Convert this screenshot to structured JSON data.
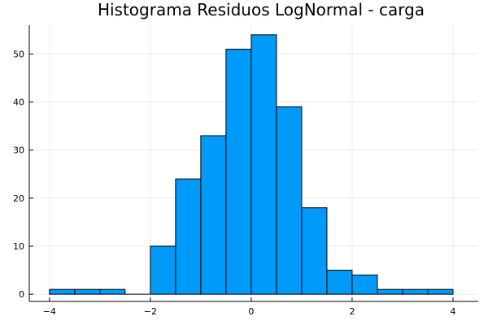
{
  "chart_data": {
    "type": "bar",
    "title": "Histograma Residuos LogNormal - carga",
    "xlabel": "",
    "ylabel": "",
    "xlim": [
      -4.4,
      4.5
    ],
    "ylim": [
      -1.5,
      56
    ],
    "x_ticks": [
      -4,
      -2,
      0,
      2,
      4
    ],
    "x_tick_labels": [
      "−4",
      "−2",
      "0",
      "2",
      "4"
    ],
    "y_ticks": [
      0,
      10,
      20,
      30,
      40,
      50
    ],
    "y_tick_labels": [
      "0",
      "10",
      "20",
      "30",
      "40",
      "50"
    ],
    "bin_width": 0.5,
    "bins": [
      {
        "start": -4.0,
        "end": -3.5,
        "count": 1
      },
      {
        "start": -3.5,
        "end": -3.0,
        "count": 1
      },
      {
        "start": -3.0,
        "end": -2.5,
        "count": 1
      },
      {
        "start": -2.5,
        "end": -2.0,
        "count": 0
      },
      {
        "start": -2.0,
        "end": -1.5,
        "count": 10
      },
      {
        "start": -1.5,
        "end": -1.0,
        "count": 24
      },
      {
        "start": -1.0,
        "end": -0.5,
        "count": 33
      },
      {
        "start": -0.5,
        "end": 0.0,
        "count": 51
      },
      {
        "start": 0.0,
        "end": 0.5,
        "count": 54
      },
      {
        "start": 0.5,
        "end": 1.0,
        "count": 39
      },
      {
        "start": 1.0,
        "end": 1.5,
        "count": 18
      },
      {
        "start": 1.5,
        "end": 2.0,
        "count": 5
      },
      {
        "start": 2.0,
        "end": 2.5,
        "count": 4
      },
      {
        "start": 2.5,
        "end": 3.0,
        "count": 1
      },
      {
        "start": 3.0,
        "end": 3.5,
        "count": 1
      },
      {
        "start": 3.5,
        "end": 4.0,
        "count": 1
      }
    ],
    "grid": true,
    "legend": "none",
    "bar_color": "#009af9",
    "bar_stroke": "#000000"
  }
}
